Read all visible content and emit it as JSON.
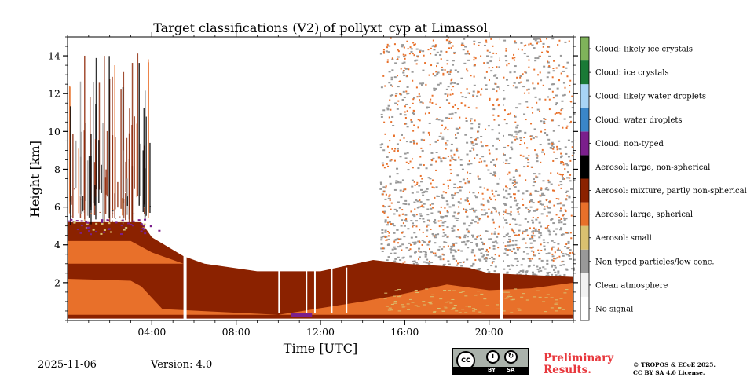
{
  "chart_data": {
    "type": "heatmap",
    "title": "Target classifications (V2) of pollyxt_cyp at Limassol",
    "xlabel": "Time [UTC]",
    "ylabel": "Height [km]",
    "xlim_hours": [
      0,
      24
    ],
    "ylim_km": [
      0,
      15
    ],
    "x_ticks": [
      {
        "value": 4,
        "label": "04:00"
      },
      {
        "value": 8,
        "label": "08:00"
      },
      {
        "value": 12,
        "label": "12:00"
      },
      {
        "value": 16,
        "label": "16:00"
      },
      {
        "value": 20,
        "label": "20:00"
      }
    ],
    "y_ticks": [
      {
        "value": 2,
        "label": "2"
      },
      {
        "value": 4,
        "label": "4"
      },
      {
        "value": 6,
        "label": "6"
      },
      {
        "value": 8,
        "label": "8"
      },
      {
        "value": 10,
        "label": "10"
      },
      {
        "value": 12,
        "label": "12"
      },
      {
        "value": 14,
        "label": "14"
      }
    ],
    "classes": [
      {
        "label": "No signal",
        "color": "#ffffff"
      },
      {
        "label": "Clean atmosphere",
        "color": "#f2f2f2"
      },
      {
        "label": "Non-typed particles/low conc.",
        "color": "#999999"
      },
      {
        "label": "Aerosol: small",
        "color": "#d9c070"
      },
      {
        "label": "Aerosol: large, spherical",
        "color": "#e8702a"
      },
      {
        "label": "Aerosol: mixture, partly non-spherical",
        "color": "#8b2200"
      },
      {
        "label": "Aerosol: large, non-spherical",
        "color": "#000000"
      },
      {
        "label": "Cloud: non-typed",
        "color": "#7b1f8c"
      },
      {
        "label": "Cloud: water droplets",
        "color": "#3a86c8"
      },
      {
        "label": "Cloud: likely water droplets",
        "color": "#a8d4f5"
      },
      {
        "label": "Cloud: ice crystals",
        "color": "#1a7a36"
      },
      {
        "label": "Cloud: likely ice crystals",
        "color": "#7fb35a"
      }
    ],
    "layers": [
      {
        "class": 5,
        "bottom_km": 0.1,
        "top_profile": [
          [
            0,
            5.2
          ],
          [
            3.5,
            5.2
          ],
          [
            4,
            4.4
          ],
          [
            5.5,
            3.4
          ],
          [
            6.5,
            3.0
          ],
          [
            9,
            2.6
          ],
          [
            12,
            2.6
          ],
          [
            14.5,
            3.2
          ],
          [
            16,
            3.0
          ],
          [
            19,
            2.8
          ],
          [
            20,
            2.5
          ],
          [
            24,
            2.3
          ]
        ]
      },
      {
        "class": 4,
        "bottom_km": 0.3,
        "top_profile": [
          [
            0,
            2.2
          ],
          [
            3,
            2.1
          ],
          [
            3.5,
            1.8
          ],
          [
            4.5,
            0.6
          ],
          [
            10,
            0.3
          ],
          [
            14,
            1.0
          ],
          [
            15.5,
            1.3
          ],
          [
            18,
            1.9
          ],
          [
            20,
            1.6
          ],
          [
            22,
            1.7
          ],
          [
            24,
            2.0
          ]
        ]
      },
      {
        "class": 4,
        "bottom_km": 3.0,
        "top_profile": [
          [
            0,
            4.2
          ],
          [
            3,
            4.2
          ],
          [
            4,
            3.6
          ],
          [
            5.5,
            3.0
          ]
        ]
      },
      {
        "class": 2,
        "bottom_km": 2.2,
        "top_profile": [
          [
            14.8,
            15.0
          ],
          [
            24,
            15.0
          ]
        ]
      }
    ],
    "gaps_hours": [
      5.5,
      20.5
    ],
    "colorbar": "categorical, 12 classes"
  },
  "footer": {
    "date": "2025-11-06",
    "version": "Version: 4.0",
    "preliminary_line1": "Preliminary",
    "preliminary_line2": "Results.",
    "copyright_line1": "© TROPOS & ECoE 2025.",
    "copyright_line2": "CC BY SA 4.0 License.",
    "cc_badge": {
      "cc": "cc",
      "by": "BY",
      "sa": "SA"
    }
  }
}
